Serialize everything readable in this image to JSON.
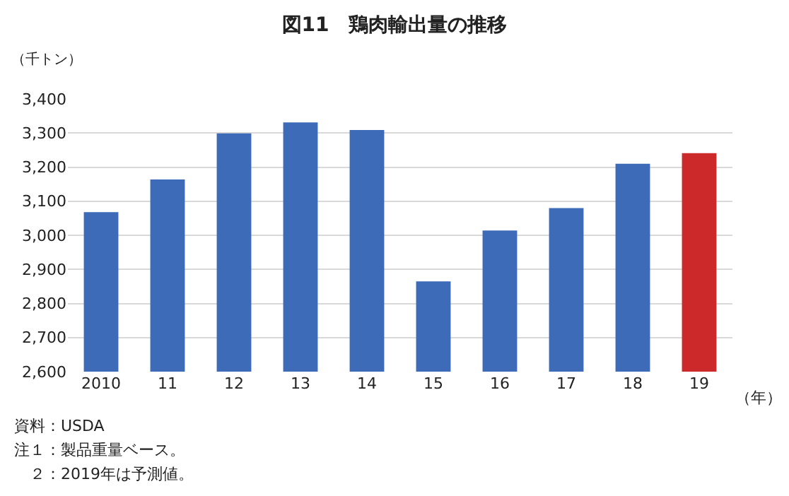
{
  "chart_data": {
    "type": "bar",
    "title": "図11　鶏肉輸出量の推移",
    "ylabel": "（千トン）",
    "xlabel": "（年）",
    "categories": [
      "2010",
      "11",
      "12",
      "13",
      "14",
      "15",
      "16",
      "17",
      "18",
      "19"
    ],
    "values": [
      3068,
      3164,
      3299,
      3331,
      3309,
      2865,
      3014,
      3080,
      3210,
      3241
    ],
    "colors": [
      "#3d6bb8",
      "#3d6bb8",
      "#3d6bb8",
      "#3d6bb8",
      "#3d6bb8",
      "#3d6bb8",
      "#3d6bb8",
      "#3d6bb8",
      "#3d6bb8",
      "#cc2a2a"
    ],
    "ylim": [
      2600,
      3400
    ],
    "yticks": [
      {
        "value": 2600,
        "label": "2,600"
      },
      {
        "value": 2700,
        "label": "2,700"
      },
      {
        "value": 2800,
        "label": "2,800"
      },
      {
        "value": 2900,
        "label": "2,900"
      },
      {
        "value": 3000,
        "label": "3,000"
      },
      {
        "value": 3100,
        "label": "3,100"
      },
      {
        "value": 3200,
        "label": "3,200"
      },
      {
        "value": 3300,
        "label": "3,300"
      },
      {
        "value": 3400,
        "label": "3,400"
      }
    ],
    "grid": "y",
    "annotations": [
      "資料：USDA",
      "注１：製品重量ベース。",
      "　２：2019年は予測値。"
    ]
  }
}
